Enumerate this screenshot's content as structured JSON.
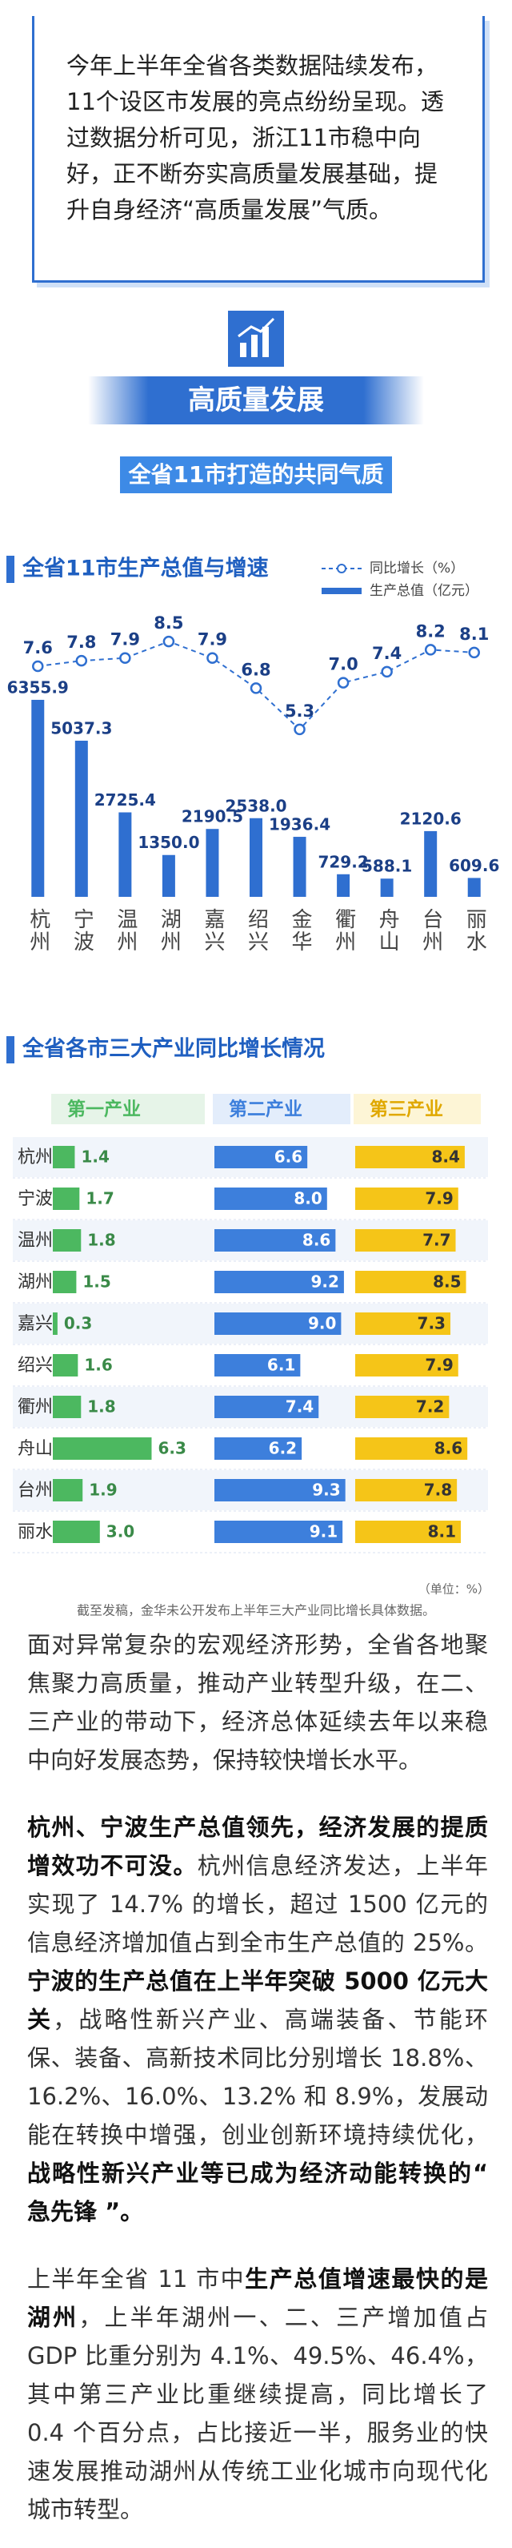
{
  "intro": "今年上半年全省各类数据陆续发布，11个设区市发展的亮点纷纷呈现。透过数据分析可见，浙江11市稳中向好，正不断夯实高质量发展基础，提升自身经济“高质量发展”气质。",
  "banner": {
    "title": "高质量发展",
    "subtitle": "全省11市打造的共同气质"
  },
  "chart_data": [
    {
      "type": "combo",
      "title": "全省11市生产总值与增速",
      "categories": [
        "杭州",
        "宁波",
        "温州",
        "湖州",
        "嘉兴",
        "绍兴",
        "金华",
        "衢州",
        "舟山",
        "台州",
        "丽水"
      ],
      "series": [
        {
          "name": "同比增长（%）",
          "type": "line",
          "axis": "y2",
          "color": "#2f6fd0",
          "values": [
            7.6,
            7.8,
            7.9,
            8.5,
            7.9,
            6.8,
            5.3,
            7.0,
            7.4,
            8.2,
            8.1
          ],
          "value_labels": [
            "7.6",
            "7.8",
            "7.9",
            "8.5",
            "7.9",
            "6.8",
            "5.3",
            "7.0",
            "7.4",
            "8.2",
            "8.1"
          ]
        },
        {
          "name": "生产总值（亿元）",
          "type": "bar",
          "color": "#2f6fd0",
          "values": [
            6355.9,
            5037.3,
            2725.4,
            1350.0,
            2190.5,
            2538.0,
            1936.4,
            729.2,
            588.1,
            2120.6,
            609.6
          ],
          "value_labels": [
            "6355.9",
            "5037.3",
            "2725.4",
            "1350.0",
            "2190.5",
            "2538.0",
            "1936.4",
            "729.2",
            "588.1",
            "2120.6",
            "609.6"
          ]
        }
      ],
      "ylim": [
        0,
        9300
      ],
      "y2lim": [
        -0.8,
        9.7
      ]
    },
    {
      "type": "bar",
      "orientation": "horizontal",
      "title": "全省各市三大产业同比增长情况",
      "categories": [
        "杭州",
        "宁波",
        "温州",
        "湖州",
        "嘉兴",
        "绍兴",
        "衢州",
        "舟山",
        "台州",
        "丽水"
      ],
      "series": [
        {
          "name": "第一产业",
          "color": "#4cb860",
          "values": [
            1.4,
            1.7,
            1.8,
            1.5,
            0.3,
            1.6,
            1.8,
            6.3,
            1.9,
            3.0
          ],
          "value_labels": [
            "1.4",
            "1.7",
            "1.8",
            "1.5",
            "0.3",
            "1.6",
            "1.8",
            "6.3",
            "1.9",
            "3.0"
          ]
        },
        {
          "name": "第二产业",
          "color": "#3d7fdc",
          "values": [
            6.6,
            8.0,
            8.6,
            9.2,
            9.0,
            6.1,
            7.4,
            6.2,
            9.3,
            9.1
          ],
          "value_labels": [
            "6.6",
            "8.0",
            "8.6",
            "9.2",
            "9.0",
            "6.1",
            "7.4",
            "6.2",
            "9.3",
            "9.1"
          ]
        },
        {
          "name": "第三产业",
          "color": "#f5c518",
          "values": [
            8.4,
            7.9,
            7.7,
            8.5,
            7.3,
            7.9,
            7.2,
            8.6,
            7.8,
            8.1
          ],
          "value_labels": [
            "8.4",
            "7.9",
            "7.7",
            "8.5",
            "7.3",
            "7.9",
            "7.2",
            "8.6",
            "7.8",
            "8.1"
          ]
        }
      ],
      "xlim": [
        0,
        10
      ],
      "unit_note": "（单位：%）",
      "footnote": "截至发稿，金华未公开发布上半年三大产业同比增长具体数据。"
    }
  ],
  "paragraphs": [
    [
      {
        "text": "面对异常复杂的宏观经济形势，全省各地聚焦聚力高质量，推动产业转型升级，在二、三产业的带动下，经济总体延续去年以来稳中向好发展态势，保持较快增长水平。",
        "bold": false
      }
    ],
    [
      {
        "text": "杭州、宁波生产总值领先，经济发展的提质增效功不可没。",
        "bold": true
      },
      {
        "text": "杭州信息经济发达，上半年实现了 14.7% 的增长，超过 1500 亿元的信息经济增加值占到全市生产总值的 25%。",
        "bold": false
      },
      {
        "text": "宁波的生产总值在上半年突破 5000 亿元大关",
        "bold": true
      },
      {
        "text": "，战略性新兴产业、高端装备、节能环保、装备、高新技术同比分别增长 18.8%、16.2%、16.0%、13.2% 和 8.9%，发展动能在转换中增强，创业创新环境持续优化，",
        "bold": false
      },
      {
        "text": "战略性新兴产业等已成为经济动能转换的“ 急先锋 ”。",
        "bold": true
      }
    ],
    [
      {
        "text": "上半年全省 11 市中",
        "bold": false
      },
      {
        "text": "生产总值增速最快的是湖州",
        "bold": true
      },
      {
        "text": "，上半年湖州一、二、三产增加值占 GDP 比重分别为 4.1%、49.5%、46.4%，其中第三产业比重继续提高，同比增长了 0.4 个百分点，占比接近一半，服务业的快速发展推动湖州从传统工业化城市向现代化城市转型。",
        "bold": false
      }
    ]
  ]
}
